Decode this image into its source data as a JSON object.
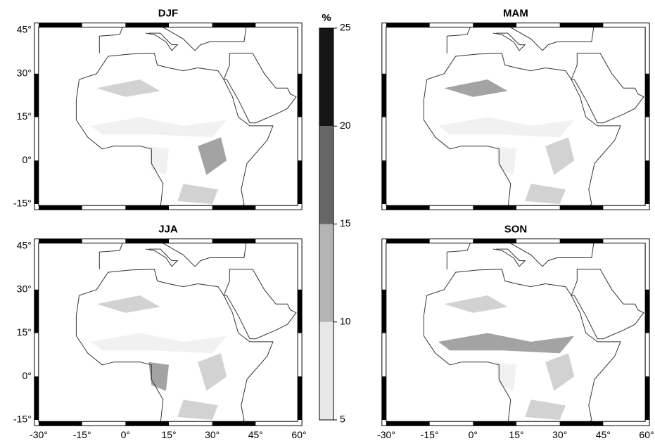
{
  "panels": [
    {
      "title": "DJF"
    },
    {
      "title": "MAM"
    },
    {
      "title": "JJA"
    },
    {
      "title": "SON"
    }
  ],
  "lat_ticks": [
    {
      "value": 45,
      "label": "45°"
    },
    {
      "value": 30,
      "label": "30°"
    },
    {
      "value": 15,
      "label": "15°"
    },
    {
      "value": 0,
      "label": "0°"
    },
    {
      "value": -15,
      "label": "-15°"
    }
  ],
  "lon_ticks": [
    {
      "value": -30,
      "label": "-30°"
    },
    {
      "value": -15,
      "label": "-15°"
    },
    {
      "value": 0,
      "label": "0°"
    },
    {
      "value": 15,
      "label": "15°"
    },
    {
      "value": 30,
      "label": "30°"
    },
    {
      "value": 45,
      "label": "45°"
    },
    {
      "value": 60,
      "label": "60°"
    }
  ],
  "colorbar": {
    "title": "%",
    "ticks": [
      5,
      10,
      15,
      20,
      25
    ],
    "colors": [
      "#e8e8e8",
      "#b4b4b4",
      "#666666",
      "#161616"
    ]
  }
}
